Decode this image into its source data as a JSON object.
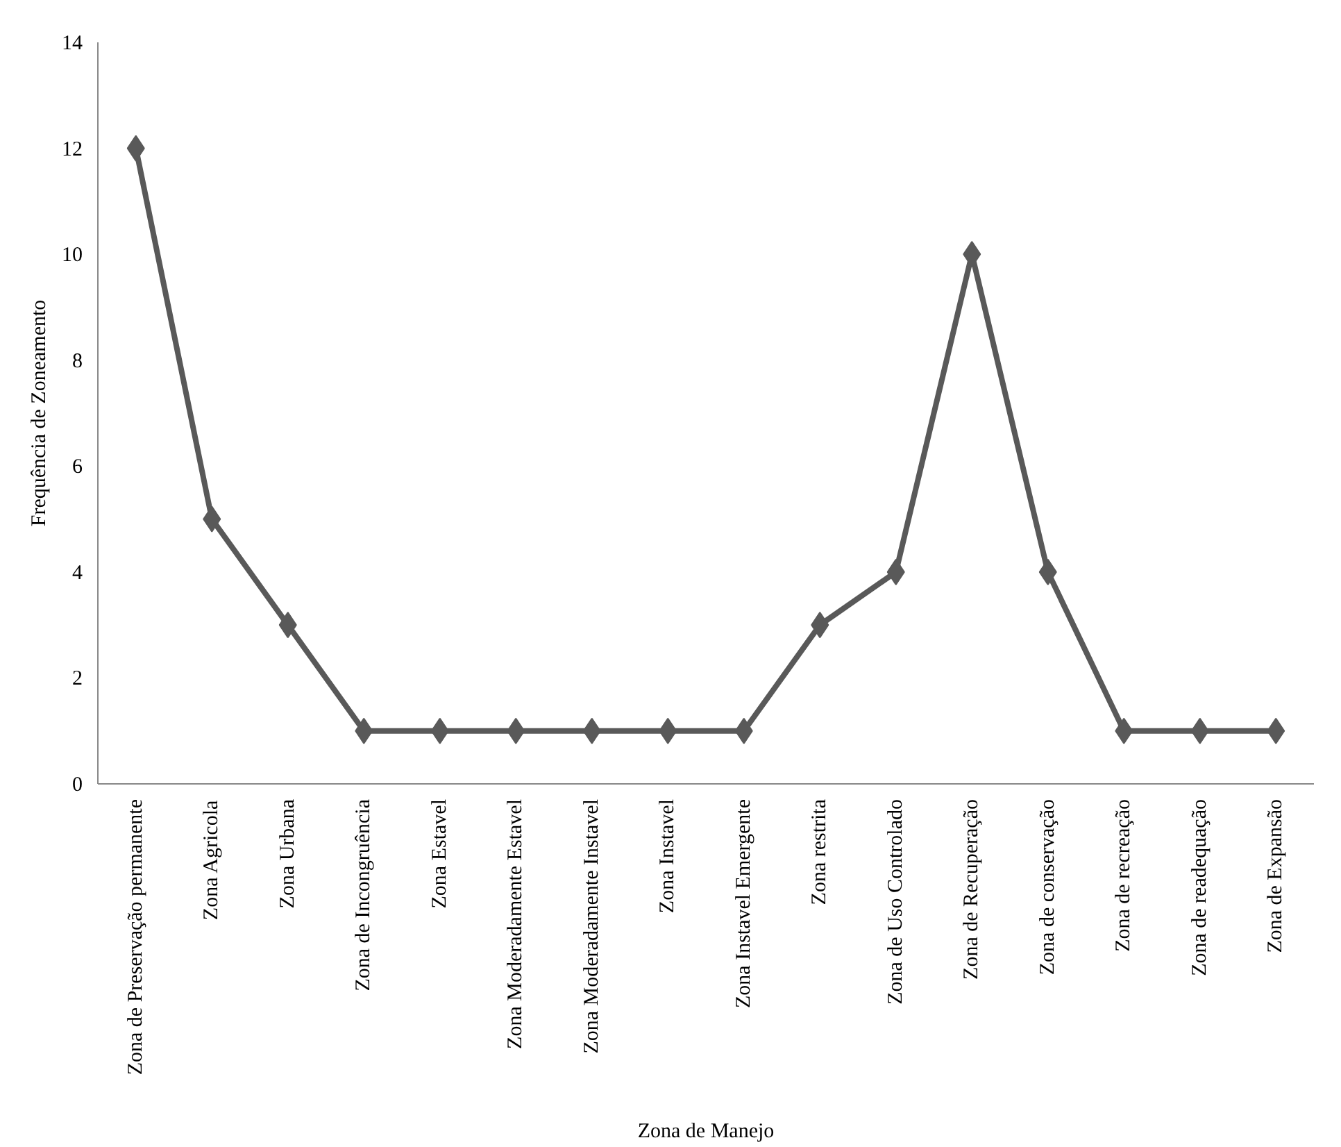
{
  "chart_data": {
    "type": "line",
    "xlabel": "Zona de Manejo",
    "ylabel": "Frequência de Zoneamento",
    "categories": [
      "Zona de Preservação permanente",
      "Zona Agricola",
      "Zona Urbana",
      "Zona de Incongruência",
      "Zona Estavel",
      "Zona Moderadamente Estavel",
      "Zona Moderadamente Instavel",
      "Zona Instavel",
      "Zona Instavel Emergente",
      "Zona restrita",
      "Zona de Uso Controlado",
      "Zona de Recuperação",
      "Zona de conservação",
      "Zona de recreação",
      "Zona de readequação",
      "Zona de Expansão"
    ],
    "series": [
      {
        "color": "#595959",
        "values": [
          12,
          5,
          3,
          1,
          1,
          1,
          1,
          1,
          1,
          3,
          4,
          10,
          4,
          1,
          1,
          1
        ]
      }
    ],
    "ylim": [
      0,
      14
    ],
    "yticks": [
      0,
      2,
      4,
      6,
      8,
      10,
      12,
      14
    ],
    "marker": "diamond",
    "line_style": "solid"
  }
}
